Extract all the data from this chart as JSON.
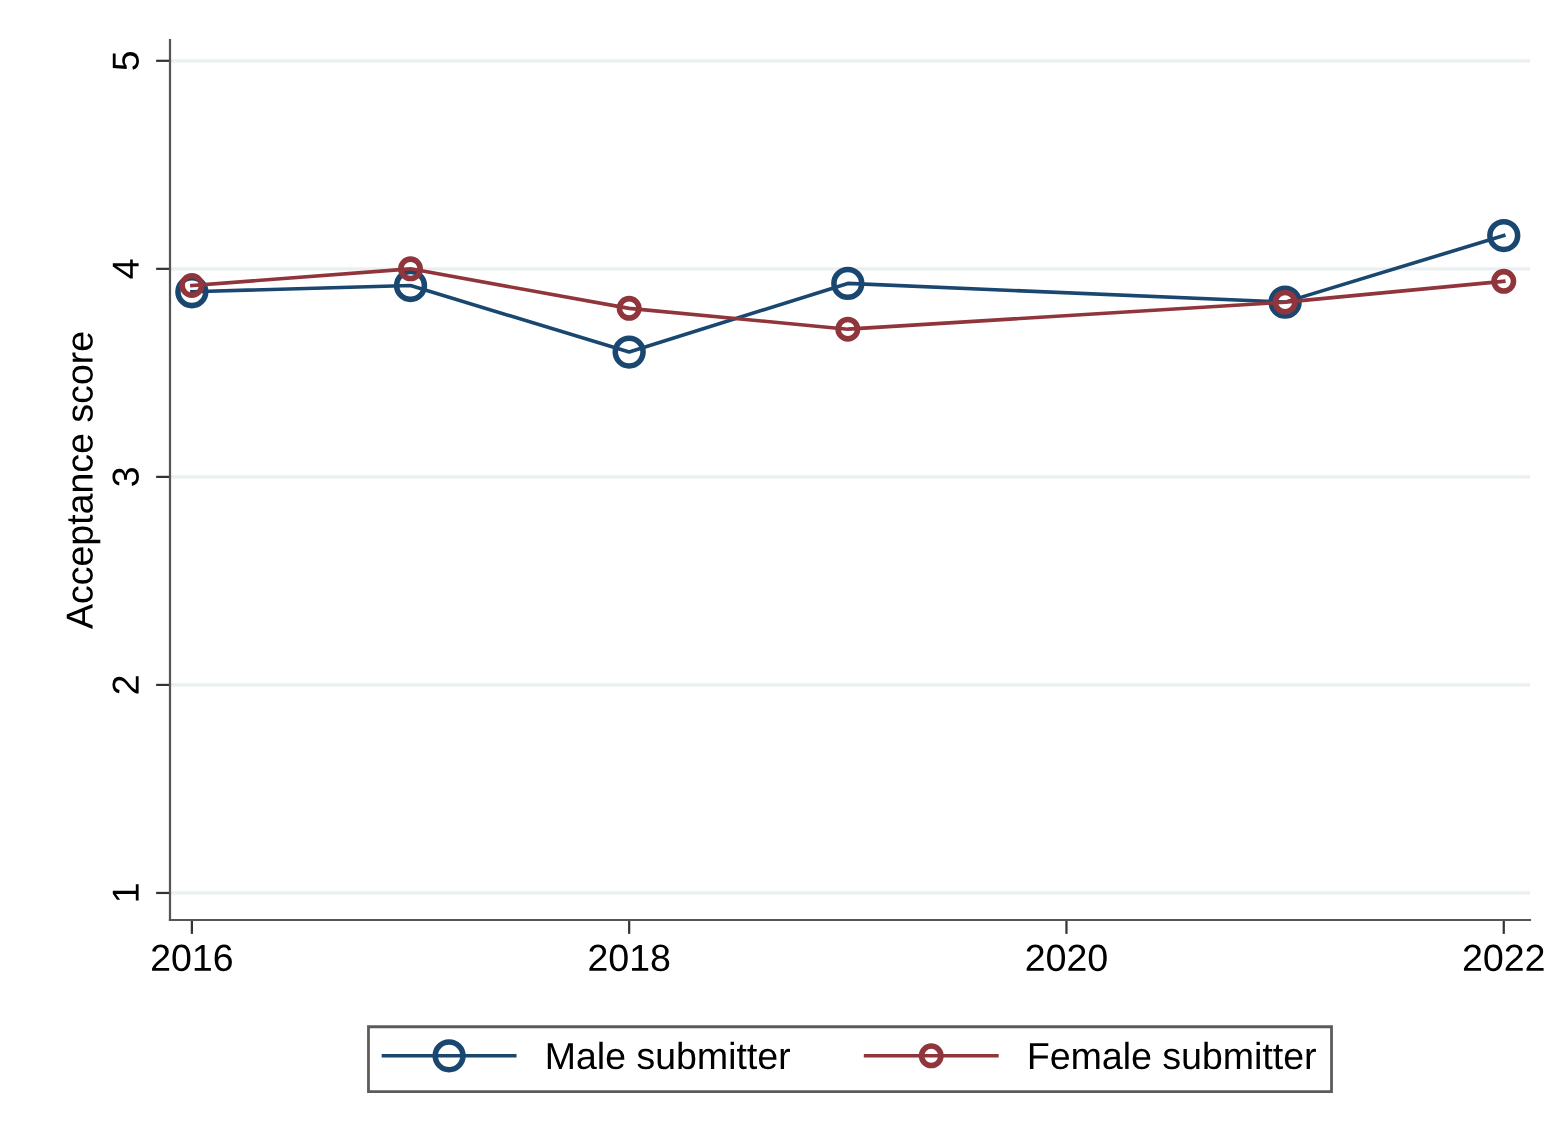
{
  "chart_data": {
    "type": "line",
    "ylabel": "Acceptance score",
    "x": [
      2016,
      2017,
      2018,
      2019,
      2021,
      2022
    ],
    "series": [
      {
        "name": "Male submitter",
        "color": "#1a476f",
        "values": [
          3.89,
          3.92,
          3.6,
          3.93,
          3.84,
          4.16
        ]
      },
      {
        "name": "Female submitter",
        "color": "#90353b",
        "values": [
          3.92,
          4.0,
          3.81,
          3.71,
          3.84,
          3.94
        ]
      }
    ],
    "xlim": [
      2015.9,
      2022.12
    ],
    "xticks": [
      2016,
      2018,
      2020,
      2022
    ],
    "ylim": [
      0.87,
      5.1
    ],
    "yticks": [
      1,
      2,
      3,
      4,
      5
    ],
    "grid": "y",
    "legend": "bottom",
    "marker": "circle",
    "line_style": "solid"
  }
}
